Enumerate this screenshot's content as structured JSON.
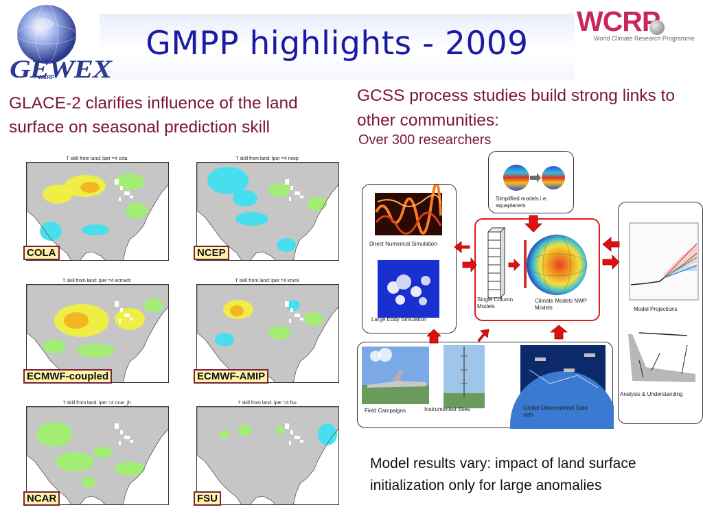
{
  "header": {
    "title": "GMPP highlights - 2009",
    "gewex_logo_text": "GEWEX",
    "gewex_logo_sub": "WCRP",
    "wcrp_logo_text": "WCRP",
    "wcrp_logo_sub": "World Climate Research Programme"
  },
  "left": {
    "text": "GLACE-2 clarifies influence of the land surface on seasonal prediction skill",
    "maps": [
      {
        "label": "COLA",
        "title": "T skill from land:  lper =4  cola"
      },
      {
        "label": "NCEP",
        "title": "T skill from land:  lper =4  ncep"
      },
      {
        "label": "ECMWF-coupled",
        "title": "T skill from land:  lper =4  ecmwfc"
      },
      {
        "label": "ECMWF-AMIP",
        "title": "T skill from land:  lper =4  kmml"
      },
      {
        "label": "NCAR",
        "title": "T skill from land:  lper =4  ncar_jh"
      },
      {
        "label": "FSU",
        "title": "T skill from land:  lper =4  fsu"
      }
    ]
  },
  "right": {
    "title": "GCSS process studies build strong links to other communities:",
    "subtitle": "Over 300 researchers",
    "diagram": {
      "simplified": "Simplified models i.e. aquaplanets",
      "dns": "Direct Numerical Simulation",
      "les": "Large Eddy Simulation",
      "scm": "Single Column Models",
      "climate": "Climate Models NWP Models",
      "projections": "Model Projections",
      "analysis": "Analysis & Understanding",
      "field": "Field Campaigns",
      "sites": "Instrumented Sites",
      "global_obs": "Global Observational Data sets"
    },
    "results": "Model results vary: impact of land surface initialization only for large anomalies"
  },
  "colors": {
    "title_blue": "#1b1aa5",
    "maroon_text": "#7b1537",
    "arrow_red": "#e01010",
    "highlight_box": "#dd1b1b"
  }
}
